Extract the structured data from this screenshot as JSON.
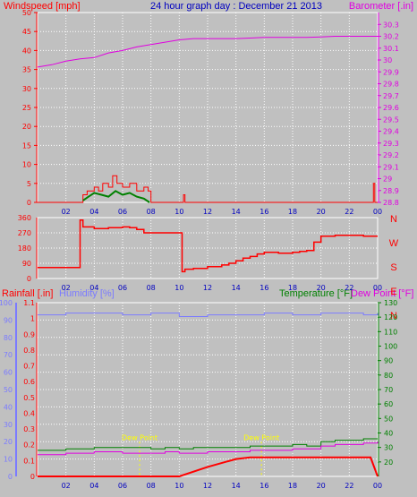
{
  "header": {
    "title": "24 hour graph day : December 21 2013",
    "wind_speed_label": "Windspeed [mph]",
    "barometer_label": "Barometer [.in]"
  },
  "panel3_labels": {
    "rainfall": "Rainfall [.in]",
    "humidity": "Humidity [%]",
    "temperature": "Temperature [°F]",
    "dewpoint": "Dew Point [°F]"
  },
  "colors": {
    "wind": "#ff0000",
    "wind_avg": "#008000",
    "wind_dir": "#ff0000",
    "barometer": "#e000e0",
    "title": "#0000c0",
    "humidity": "#7b7bff",
    "temperature": "#008000",
    "dewpoint": "#e000e0",
    "rain": "#ff0000",
    "annotation": "#ffff00"
  },
  "chart_data": [
    {
      "type": "line",
      "title": "24 hour graph day : December 21 2013",
      "x_ticks": [
        "02",
        "04",
        "06",
        "08",
        "10",
        "12",
        "14",
        "16",
        "18",
        "20",
        "22",
        "00"
      ],
      "xlim": [
        0,
        24
      ],
      "y_left": {
        "label": "Windspeed [mph]",
        "ticks": [
          "0",
          "5",
          "10",
          "15",
          "20",
          "25",
          "30",
          "35",
          "40",
          "45",
          "50"
        ],
        "ylim": [
          0,
          50
        ]
      },
      "y_right": {
        "label": "Barometer [.in]",
        "ticks": [
          "28.8",
          "28.9",
          "29",
          "29.1",
          "29.2",
          "29.3",
          "29.4",
          "29.5",
          "29.6",
          "29.7",
          "29.8",
          "29.9",
          "30",
          "30.1",
          "30.2",
          "30.3"
        ],
        "ylim": [
          28.8,
          30.4
        ]
      },
      "series": [
        {
          "key": "barometer",
          "axis": "right",
          "x": [
            0,
            1,
            2,
            3,
            4,
            5,
            6,
            7,
            8,
            9,
            10,
            11,
            12,
            13,
            14,
            15,
            16,
            17,
            18,
            19,
            20,
            21,
            22,
            23,
            24
          ],
          "y": [
            29.94,
            29.96,
            29.99,
            30.01,
            30.02,
            30.06,
            30.08,
            30.11,
            30.13,
            30.15,
            30.17,
            30.18,
            30.18,
            30.18,
            30.18,
            30.185,
            30.19,
            30.19,
            30.19,
            30.19,
            30.195,
            30.2,
            30.2,
            30.2,
            30.2
          ]
        },
        {
          "key": "wind",
          "axis": "left",
          "x": [
            0,
            1,
            2,
            3,
            3.2,
            3.5,
            4,
            4.3,
            4.6,
            5,
            5.3,
            5.6,
            6,
            6.5,
            7,
            7.5,
            7.8,
            8,
            10.2,
            10.3,
            10.4,
            23.5,
            23.7,
            23.8,
            24
          ],
          "y": [
            0,
            0,
            0,
            0,
            2,
            3,
            4,
            3,
            5,
            4,
            7,
            5,
            4,
            5,
            3,
            4,
            3,
            0,
            0,
            2,
            0,
            0,
            5,
            0,
            0
          ]
        },
        {
          "key": "wind_avg",
          "axis": "left",
          "x": [
            3.2,
            3.6,
            4,
            4.5,
            5,
            5.5,
            6,
            6.5,
            7,
            7.5,
            7.9
          ],
          "y": [
            0.5,
            1.5,
            2.5,
            2,
            1.5,
            3,
            2,
            2.5,
            1.5,
            1,
            0
          ]
        }
      ]
    },
    {
      "type": "line",
      "y_left": {
        "ticks": [
          "0",
          "90",
          "180",
          "270",
          "360"
        ],
        "ylim": [
          0,
          360
        ]
      },
      "y_right": {
        "ticks": [
          "N",
          "W",
          "S",
          "E",
          "N"
        ]
      },
      "x_ticks": [
        "02",
        "04",
        "06",
        "08",
        "10",
        "12",
        "14",
        "16",
        "18",
        "20",
        "22",
        "00"
      ],
      "series": [
        {
          "key": "wind_dir",
          "axis": "left",
          "x": [
            0,
            2.9,
            3.0,
            3.2,
            4,
            5,
            6,
            6.5,
            7,
            7.5,
            8,
            9,
            10.15,
            10.2,
            10.4,
            11,
            12,
            13,
            13.5,
            14,
            14.5,
            15,
            15.5,
            16,
            17,
            18,
            18.5,
            19,
            19.5,
            20,
            21,
            22,
            23,
            24
          ],
          "y": [
            65,
            65,
            345,
            305,
            295,
            300,
            305,
            300,
            290,
            270,
            270,
            270,
            270,
            40,
            55,
            60,
            70,
            80,
            90,
            105,
            120,
            130,
            145,
            155,
            150,
            155,
            160,
            165,
            215,
            250,
            255,
            255,
            250,
            250
          ]
        }
      ]
    },
    {
      "type": "line",
      "x_ticks": [
        "02",
        "04",
        "06",
        "08",
        "10",
        "12",
        "14",
        "16",
        "18",
        "20",
        "22",
        "00"
      ],
      "y_rain": {
        "label": "Rainfall [.in]",
        "ticks": [
          "0",
          "0.1",
          "0.2",
          "0.3",
          "0.4",
          "0.5",
          "0.6",
          "0.7",
          "0.8",
          "0.9",
          "1",
          "1.1"
        ]
      },
      "y_humidity": {
        "label": "Humidity [%]",
        "ticks": [
          "0",
          "10",
          "20",
          "30",
          "40",
          "50",
          "60",
          "70",
          "80",
          "90",
          "100"
        ],
        "ylim": [
          0,
          100
        ]
      },
      "y_temp": {
        "label": "Temperature [°F]",
        "ticks": [
          "20",
          "30",
          "40",
          "50",
          "60",
          "70",
          "80",
          "90",
          "100",
          "110",
          "120",
          "130"
        ],
        "ylim": [
          10,
          130
        ]
      },
      "annotations": [
        {
          "text": "Dew Point",
          "x": 7.2
        },
        {
          "text": "Dew Point",
          "x": 15.8
        }
      ],
      "series": [
        {
          "key": "humidity",
          "axis": "humidity",
          "x": [
            0,
            2,
            4,
            6,
            8,
            10,
            11,
            12,
            14,
            16,
            18,
            20,
            22,
            23,
            24
          ],
          "y": [
            93,
            94,
            94,
            93,
            94,
            92,
            92,
            93,
            93,
            94,
            93,
            94,
            94,
            93,
            94
          ]
        },
        {
          "key": "temperature",
          "axis": "temp",
          "x": [
            0,
            2,
            4,
            6,
            8,
            9,
            10,
            11,
            12,
            14,
            15,
            16,
            17,
            18,
            19,
            20,
            21,
            22,
            23,
            24
          ],
          "y": [
            28,
            29,
            30,
            30,
            29,
            30,
            29,
            30,
            30,
            30,
            31,
            31,
            31,
            32,
            31,
            34,
            35,
            35,
            36,
            36
          ]
        },
        {
          "key": "dewpoint",
          "axis": "temp",
          "x": [
            0,
            2,
            4,
            6,
            8,
            9,
            10,
            11,
            12,
            14,
            15,
            16,
            17,
            18,
            19,
            20,
            21,
            22,
            23,
            24
          ],
          "y": [
            25,
            26,
            27,
            26,
            26,
            27,
            26,
            26,
            27,
            27,
            28,
            28,
            28,
            29,
            29,
            31,
            32,
            32,
            33,
            34
          ]
        },
        {
          "key": "rain",
          "axis": "rain",
          "x": [
            0,
            9.9,
            10,
            12,
            14,
            15,
            16,
            18,
            20,
            22,
            23.5,
            24
          ],
          "y": [
            0,
            0,
            0,
            0.06,
            0.11,
            0.12,
            0.12,
            0.12,
            0.12,
            0.12,
            0.12,
            0
          ]
        }
      ]
    }
  ]
}
